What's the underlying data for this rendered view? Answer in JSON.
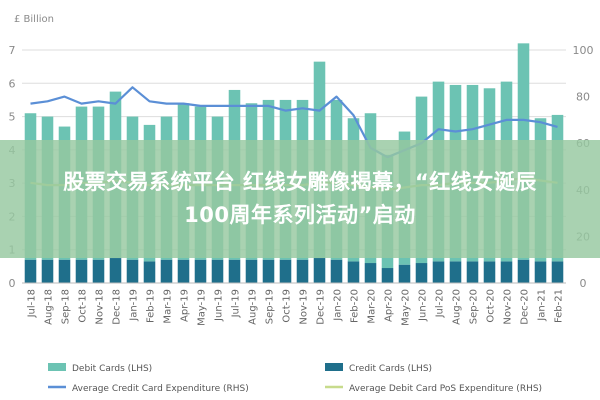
{
  "chart_data": {
    "type": "bar",
    "left_axis_label": "£ Billion",
    "left_ylim": [
      0,
      7
    ],
    "left_ticks": [
      "0",
      "1",
      "2",
      "3",
      "4",
      "5",
      "6",
      "7"
    ],
    "right_ylim": [
      0,
      100
    ],
    "right_ticks": [
      "0",
      "20",
      "40",
      "60",
      "80",
      "100"
    ],
    "categories": [
      "Jul-18",
      "Aug-18",
      "Sep-18",
      "Oct-18",
      "Nov-18",
      "Dec-18",
      "Jan-19",
      "Feb-19",
      "Mar-19",
      "Apr-19",
      "May-19",
      "Jun-19",
      "Jul-19",
      "Aug-19",
      "Sep-19",
      "Oct-19",
      "Nov-19",
      "Dec-19",
      "Jan-20",
      "Feb-20",
      "Mar-20",
      "Apr-20",
      "May-20",
      "Jun-20",
      "Jul-20",
      "Aug-20",
      "Sep-20",
      "Oct-20",
      "Nov-20",
      "Dec-20",
      "Jan-21",
      "Feb-21"
    ],
    "series": [
      {
        "name": "Debit Cards (LHS)",
        "axis": "left",
        "kind": "bar",
        "color": "#6cc3b3",
        "values": [
          4.4,
          4.3,
          4.0,
          4.6,
          4.6,
          5.0,
          4.3,
          4.1,
          4.3,
          4.7,
          4.6,
          4.3,
          5.1,
          4.7,
          4.8,
          4.8,
          4.8,
          5.9,
          4.8,
          4.3,
          4.5,
          3.4,
          4.0,
          5.0,
          5.4,
          5.3,
          5.3,
          5.2,
          5.4,
          6.5,
          4.3,
          4.4
        ]
      },
      {
        "name": "Credit Cards (LHS)",
        "axis": "left",
        "kind": "bar",
        "color": "#1f6f8b",
        "values": [
          0.7,
          0.7,
          0.7,
          0.7,
          0.7,
          0.75,
          0.7,
          0.65,
          0.7,
          0.7,
          0.7,
          0.7,
          0.7,
          0.7,
          0.7,
          0.7,
          0.7,
          0.75,
          0.7,
          0.65,
          0.6,
          0.45,
          0.55,
          0.6,
          0.65,
          0.65,
          0.65,
          0.65,
          0.65,
          0.7,
          0.65,
          0.65
        ]
      },
      {
        "name": "Average Credit Card Expenditure (RHS)",
        "axis": "right",
        "kind": "line",
        "color": "#5b8fd6",
        "values": [
          77,
          78,
          80,
          77,
          78,
          77,
          84,
          78,
          77,
          77,
          76,
          76,
          76,
          76,
          76,
          74,
          75,
          74,
          80,
          72,
          58,
          54,
          57,
          60,
          66,
          65,
          66,
          68,
          70,
          70,
          69,
          67
        ]
      },
      {
        "name": "Average Debit Card PoS Expenditure (RHS)",
        "axis": "right",
        "kind": "line",
        "color": "#c7db8c",
        "values": [
          43,
          42,
          42,
          43,
          43,
          44,
          43,
          42,
          42,
          42,
          42,
          42,
          42,
          42,
          42,
          42,
          42,
          43,
          43,
          42,
          41,
          40,
          41,
          42,
          42,
          43,
          43,
          43,
          44,
          45,
          44,
          43
        ]
      }
    ],
    "grid": true,
    "legend_position": "bottom"
  },
  "banner": {
    "line1": "股票交易系统平台 红线女雕像揭幕，“红线女诞辰",
    "line2": "100周年系列活动”启动"
  }
}
